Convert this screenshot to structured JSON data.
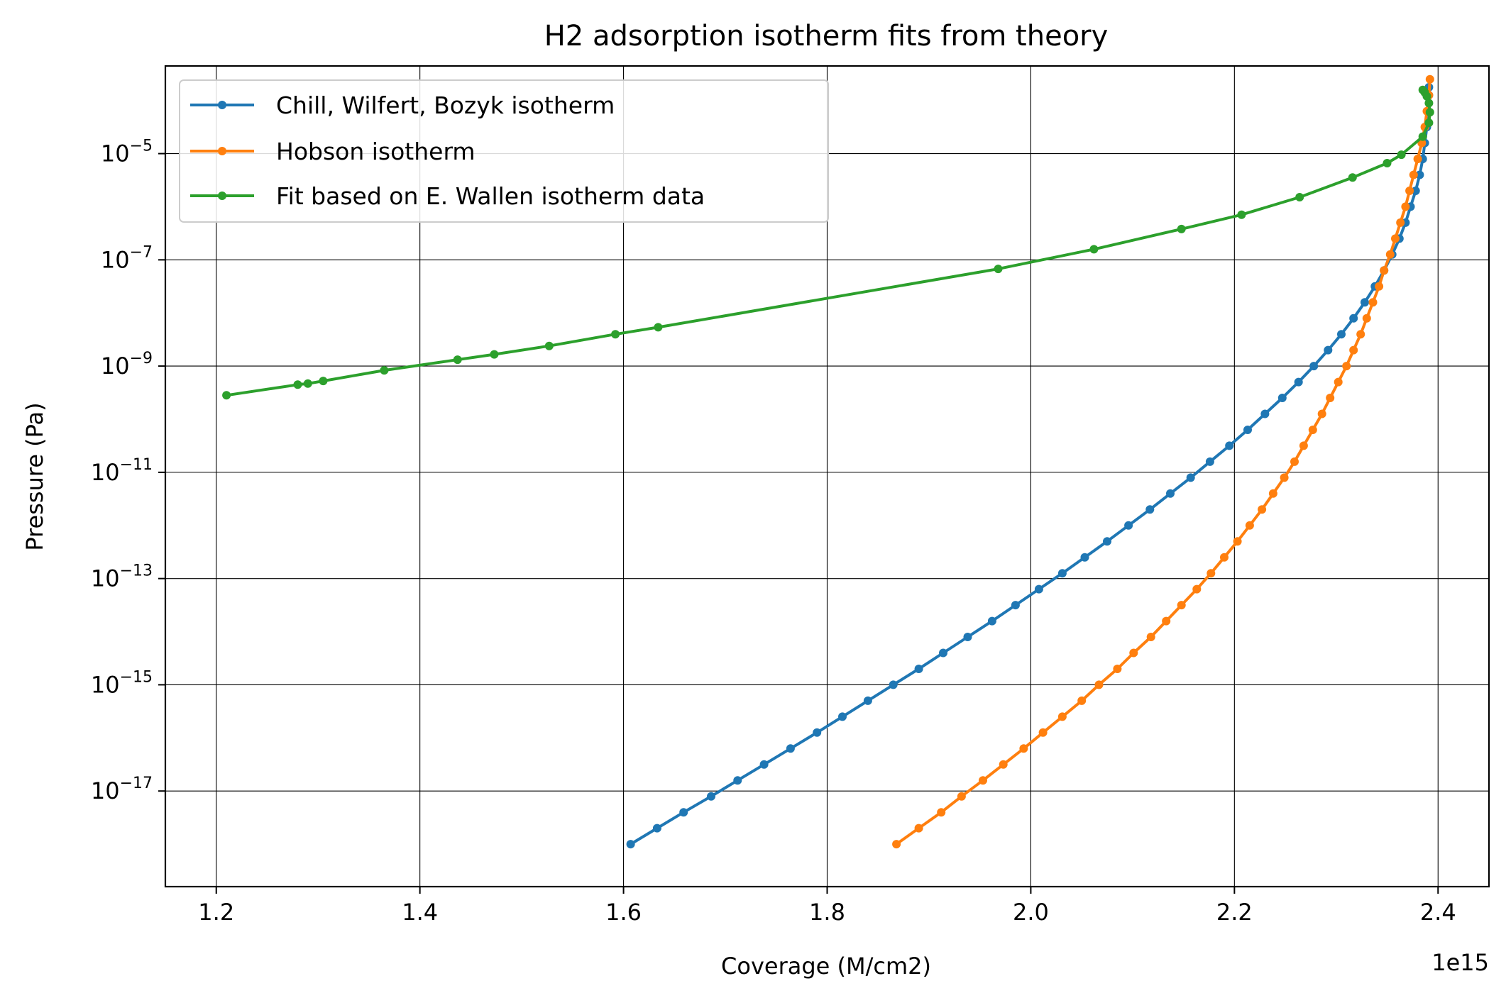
{
  "chart_data": {
    "type": "line",
    "title": "H2 adsorption isotherm fits from theory",
    "xlabel": "Coverage (M/cm2)",
    "ylabel": "Pressure (Pa)",
    "x_offset_label": "1e15",
    "xlim": [
      1.15,
      2.45
    ],
    "ylim_log10": [
      -18.8,
      -3.35
    ],
    "y_scale": "log",
    "grid": true,
    "legend_position": "top-left",
    "x_ticks": [
      1.2,
      1.4,
      1.6,
      1.8,
      2.0,
      2.2,
      2.4
    ],
    "x_tick_labels": [
      "1.2",
      "1.4",
      "1.6",
      "1.8",
      "2.0",
      "2.2",
      "2.4"
    ],
    "y_ticks_log10": [
      -17,
      -15,
      -13,
      -11,
      -9,
      -7,
      -5
    ],
    "y_tick_base": "10",
    "y_tick_exponents": [
      "−17",
      "−15",
      "−13",
      "−11",
      "−9",
      "−7",
      "−5"
    ],
    "series": [
      {
        "name": "Chill, Wilfert, Bozyk isotherm",
        "color": "#1f77b4",
        "points": [
          [
            1.607,
            -18.0
          ],
          [
            1.633,
            -17.7
          ],
          [
            1.659,
            -17.4
          ],
          [
            1.686,
            -17.1
          ],
          [
            1.712,
            -16.8
          ],
          [
            1.738,
            -16.5
          ],
          [
            1.764,
            -16.2
          ],
          [
            1.79,
            -15.9
          ],
          [
            1.815,
            -15.6
          ],
          [
            1.84,
            -15.3
          ],
          [
            1.865,
            -15.0
          ],
          [
            1.89,
            -14.7
          ],
          [
            1.914,
            -14.4
          ],
          [
            1.938,
            -14.1
          ],
          [
            1.962,
            -13.8
          ],
          [
            1.985,
            -13.5
          ],
          [
            2.008,
            -13.2
          ],
          [
            2.031,
            -12.9
          ],
          [
            2.053,
            -12.6
          ],
          [
            2.075,
            -12.3
          ],
          [
            2.096,
            -12.0
          ],
          [
            2.117,
            -11.7
          ],
          [
            2.137,
            -11.4
          ],
          [
            2.157,
            -11.1
          ],
          [
            2.176,
            -10.8
          ],
          [
            2.195,
            -10.5
          ],
          [
            2.213,
            -10.2
          ],
          [
            2.23,
            -9.9
          ],
          [
            2.247,
            -9.6
          ],
          [
            2.263,
            -9.3
          ],
          [
            2.278,
            -9.0
          ],
          [
            2.292,
            -8.7
          ],
          [
            2.305,
            -8.4
          ],
          [
            2.317,
            -8.1
          ],
          [
            2.328,
            -7.8
          ],
          [
            2.338,
            -7.5
          ],
          [
            2.347,
            -7.2
          ],
          [
            2.355,
            -6.9
          ],
          [
            2.362,
            -6.6
          ],
          [
            2.368,
            -6.3
          ],
          [
            2.373,
            -6.0
          ],
          [
            2.378,
            -5.7
          ],
          [
            2.382,
            -5.4
          ],
          [
            2.385,
            -5.1
          ],
          [
            2.387,
            -4.8
          ],
          [
            2.389,
            -4.5
          ],
          [
            2.39,
            -4.2
          ],
          [
            2.391,
            -3.9
          ],
          [
            2.391,
            -3.75
          ]
        ]
      },
      {
        "name": "Hobson isotherm",
        "color": "#ff7f0e",
        "points": [
          [
            1.868,
            -18.0
          ],
          [
            1.89,
            -17.7
          ],
          [
            1.912,
            -17.4
          ],
          [
            1.932,
            -17.1
          ],
          [
            1.953,
            -16.8
          ],
          [
            1.973,
            -16.5
          ],
          [
            1.993,
            -16.2
          ],
          [
            2.012,
            -15.9
          ],
          [
            2.031,
            -15.6
          ],
          [
            2.05,
            -15.3
          ],
          [
            2.067,
            -15.0
          ],
          [
            2.085,
            -14.7
          ],
          [
            2.101,
            -14.4
          ],
          [
            2.118,
            -14.1
          ],
          [
            2.133,
            -13.8
          ],
          [
            2.148,
            -13.5
          ],
          [
            2.163,
            -13.2
          ],
          [
            2.177,
            -12.9
          ],
          [
            2.19,
            -12.6
          ],
          [
            2.203,
            -12.3
          ],
          [
            2.215,
            -12.0
          ],
          [
            2.227,
            -11.7
          ],
          [
            2.238,
            -11.4
          ],
          [
            2.249,
            -11.1
          ],
          [
            2.259,
            -10.8
          ],
          [
            2.268,
            -10.5
          ],
          [
            2.277,
            -10.2
          ],
          [
            2.286,
            -9.9
          ],
          [
            2.294,
            -9.6
          ],
          [
            2.302,
            -9.3
          ],
          [
            2.31,
            -9.0
          ],
          [
            2.317,
            -8.7
          ],
          [
            2.324,
            -8.4
          ],
          [
            2.33,
            -8.1
          ],
          [
            2.336,
            -7.8
          ],
          [
            2.342,
            -7.5
          ],
          [
            2.347,
            -7.2
          ],
          [
            2.353,
            -6.9
          ],
          [
            2.358,
            -6.6
          ],
          [
            2.363,
            -6.3
          ],
          [
            2.368,
            -6.0
          ],
          [
            2.372,
            -5.7
          ],
          [
            2.376,
            -5.4
          ],
          [
            2.38,
            -5.1
          ],
          [
            2.384,
            -4.8
          ],
          [
            2.387,
            -4.5
          ],
          [
            2.389,
            -4.2
          ],
          [
            2.391,
            -3.9
          ],
          [
            2.392,
            -3.6
          ]
        ]
      },
      {
        "name": "Fit based on E. Wallen isotherm data",
        "color": "#2ca02c",
        "points": [
          [
            1.21,
            -9.55
          ],
          [
            1.28,
            -9.35
          ],
          [
            1.29,
            -9.33
          ],
          [
            1.305,
            -9.28
          ],
          [
            1.365,
            -9.08
          ],
          [
            1.437,
            -8.88
          ],
          [
            1.473,
            -8.78
          ],
          [
            1.527,
            -8.62
          ],
          [
            1.592,
            -8.4
          ],
          [
            1.634,
            -8.27
          ],
          [
            1.968,
            -7.17
          ],
          [
            2.062,
            -6.8
          ],
          [
            2.148,
            -6.42
          ],
          [
            2.207,
            -6.15
          ],
          [
            2.264,
            -5.82
          ],
          [
            2.316,
            -5.45
          ],
          [
            2.35,
            -5.18
          ],
          [
            2.364,
            -5.02
          ],
          [
            2.385,
            -4.68
          ],
          [
            2.391,
            -4.42
          ],
          [
            2.392,
            -4.22
          ],
          [
            2.391,
            -4.05
          ],
          [
            2.389,
            -3.92
          ],
          [
            2.387,
            -3.85
          ],
          [
            2.385,
            -3.8
          ]
        ]
      }
    ]
  }
}
